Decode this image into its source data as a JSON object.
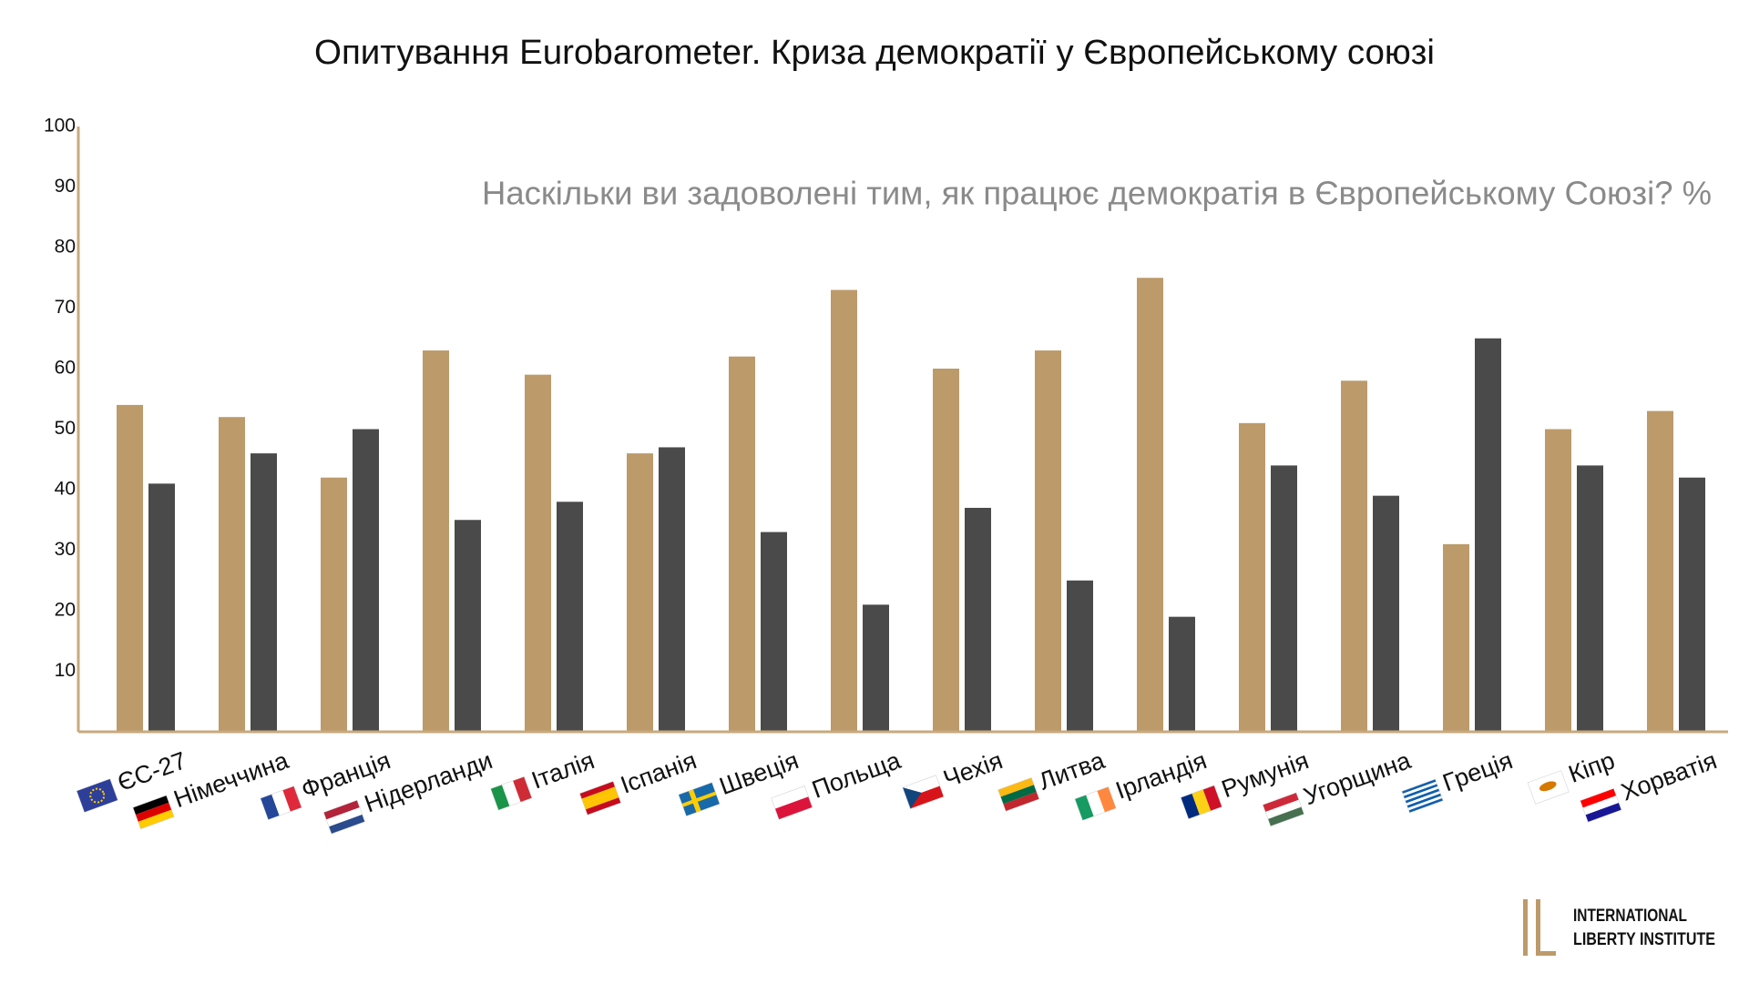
{
  "chart_data": {
    "type": "bar",
    "title": "Опитування Eurobarometer. Криза демократії у Європейському союзі",
    "subtitle": "Наскільки ви задоволені тим, як працює демократія в Європейському Союзі? %",
    "categories": [
      "ЄС-27",
      "Німеччина",
      "Франція",
      "Нідерланди",
      "Італія",
      "Іспанія",
      "Швеція",
      "Польща",
      "Чехія",
      "Литва",
      "Ірландія",
      "Румунія",
      "Угорщина",
      "Греція",
      "Кіпр",
      "Хорватія"
    ],
    "series": [
      {
        "color": "#bc9a6a",
        "values": [
          54,
          52,
          42,
          63,
          59,
          46,
          62,
          73,
          60,
          63,
          75,
          51,
          58,
          31,
          50,
          53
        ]
      },
      {
        "color": "#4a4a4a",
        "values": [
          41,
          46,
          50,
          35,
          38,
          47,
          33,
          21,
          37,
          25,
          19,
          44,
          39,
          65,
          44,
          42
        ]
      }
    ],
    "ylim": [
      0,
      100
    ],
    "yticks": [
      10,
      20,
      30,
      40,
      50,
      60,
      70,
      80,
      90,
      100
    ],
    "grid": false,
    "axis_color": "#c8a97e"
  },
  "logo": {
    "line1": "INTERNATIONAL",
    "line2": "LIBERTY INSTITUTE"
  }
}
